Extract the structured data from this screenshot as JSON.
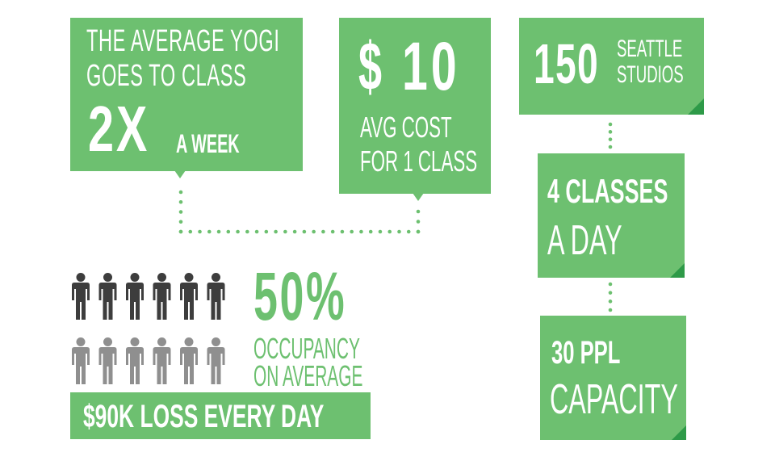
{
  "colors": {
    "green": "#6dc070",
    "green_dark": "#2e9a48",
    "dot": "#6dc070",
    "white": "#ffffff",
    "person_dark": "#3d3d3d",
    "person_light": "#8f8f8f"
  },
  "yogi": {
    "line1": "THE AVERAGE YOGI",
    "line2": "GOES TO CLASS",
    "big": "2X",
    "small": "A WEEK"
  },
  "cost": {
    "currency": "$",
    "amount": "10",
    "line1": "AVG COST",
    "line2": "FOR 1 CLASS"
  },
  "studios": {
    "number": "150",
    "line1": "SEATTLE",
    "line2": "STUDIOS"
  },
  "classes": {
    "line1": "4 CLASSES",
    "line2": "A DAY"
  },
  "capacity": {
    "line1": "30 PPL",
    "line2": "CAPACITY"
  },
  "occupancy": {
    "percent": "50%",
    "line1": "OCCUPANCY",
    "line2": "ON AVERAGE",
    "occupied_count": 6,
    "total_count": 12
  },
  "loss": {
    "text": "$90K LOSS EVERY DAY"
  },
  "icons": {
    "person": "person-icon"
  }
}
